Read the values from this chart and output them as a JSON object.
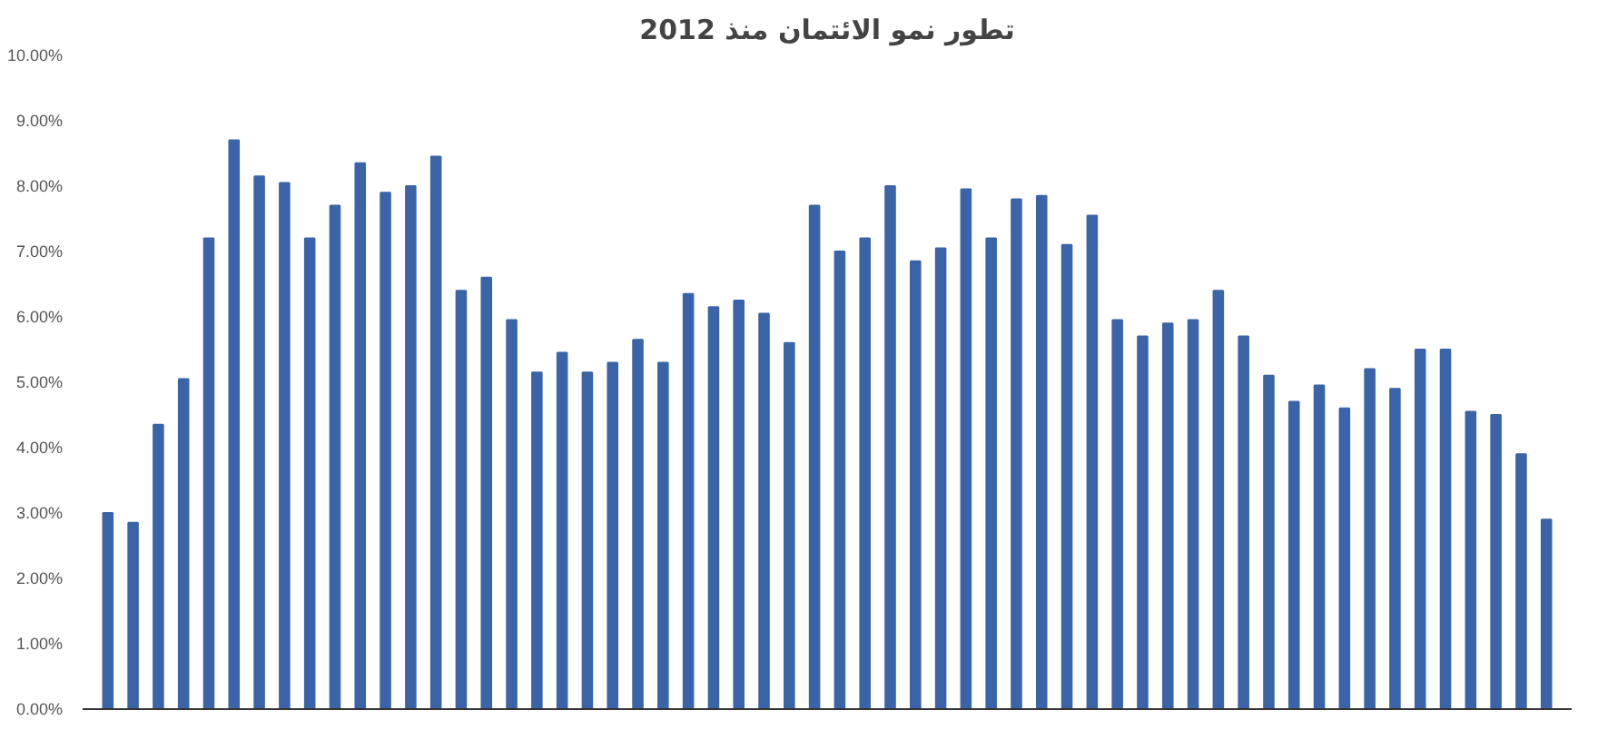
{
  "chart_data": {
    "type": "bar",
    "title": "تطور نمو الائتمان منذ 2012",
    "categories": [
      null,
      null,
      null,
      null,
      null,
      null,
      null,
      null,
      null,
      null,
      null,
      null,
      null,
      null,
      null,
      null,
      null,
      null,
      null,
      null,
      null,
      null,
      null,
      null,
      null,
      null,
      null,
      null,
      null,
      null,
      null,
      null,
      null,
      null,
      null,
      null,
      null,
      null,
      null,
      null,
      null,
      null,
      null,
      null,
      null,
      null,
      null,
      null,
      null,
      null,
      null,
      null,
      null,
      null,
      null,
      null,
      null,
      null
    ],
    "values": [
      3.0,
      2.85,
      4.35,
      5.05,
      7.2,
      8.7,
      8.15,
      8.05,
      7.2,
      7.7,
      8.35,
      7.9,
      8.0,
      8.45,
      6.4,
      6.6,
      5.95,
      5.15,
      5.45,
      5.15,
      5.3,
      5.65,
      5.3,
      6.35,
      6.15,
      6.25,
      6.05,
      5.6,
      7.7,
      7.0,
      7.2,
      8.0,
      6.85,
      7.05,
      7.95,
      7.2,
      7.8,
      7.85,
      7.1,
      7.55,
      5.95,
      5.7,
      5.9,
      5.95,
      6.4,
      5.7,
      5.1,
      4.7,
      4.95,
      4.6,
      5.2,
      4.9,
      5.5,
      5.5,
      4.55,
      4.5,
      3.9,
      2.9
    ],
    "color": "#3b64a8",
    "ylim": [
      0,
      10
    ],
    "yticks": [
      {
        "value": 0,
        "label": "0.00%"
      },
      {
        "value": 1,
        "label": "1.00%"
      },
      {
        "value": 2,
        "label": "2.00%"
      },
      {
        "value": 3,
        "label": "3.00%"
      },
      {
        "value": 4,
        "label": "4.00%"
      },
      {
        "value": 5,
        "label": "5.00%"
      },
      {
        "value": 6,
        "label": "6.00%"
      },
      {
        "value": 7,
        "label": "7.00%"
      },
      {
        "value": 8,
        "label": "8.00%"
      },
      {
        "value": 9,
        "label": "9.00%"
      },
      {
        "value": 10,
        "label": "10.00%"
      }
    ],
    "tick_labels": "y"
  }
}
